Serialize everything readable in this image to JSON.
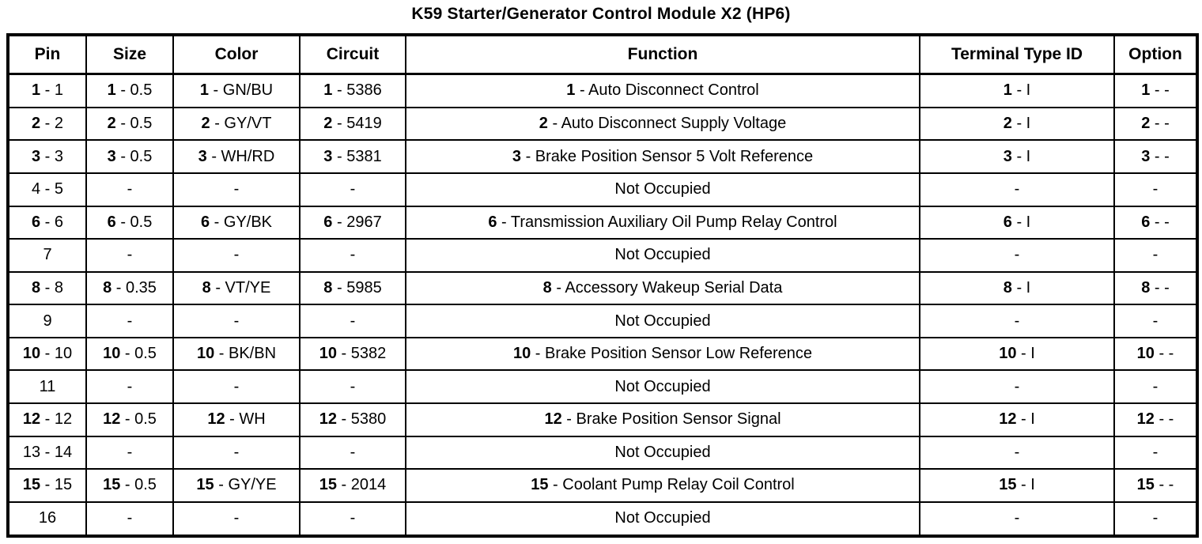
{
  "title": "K59 Starter/Generator Control Module X2 (HP6)",
  "table": {
    "headers": [
      "Pin",
      "Size",
      "Color",
      "Circuit",
      "Function",
      "Terminal Type ID",
      "Option"
    ],
    "rows": [
      {
        "pin": {
          "b": "1",
          "r": " - 1"
        },
        "size": {
          "b": "1",
          "r": " - 0.5"
        },
        "color": {
          "b": "1",
          "r": " - GN/BU"
        },
        "circuit": {
          "b": "1",
          "r": " - 5386"
        },
        "function": {
          "b": "1",
          "r": " - Auto Disconnect Control"
        },
        "terminal": {
          "b": "1",
          "r": " - I"
        },
        "option": {
          "b": "1",
          "r": " - -"
        }
      },
      {
        "pin": {
          "b": "2",
          "r": " - 2"
        },
        "size": {
          "b": "2",
          "r": " - 0.5"
        },
        "color": {
          "b": "2",
          "r": " - GY/VT"
        },
        "circuit": {
          "b": "2",
          "r": " - 5419"
        },
        "function": {
          "b": "2",
          "r": " - Auto Disconnect Supply Voltage"
        },
        "terminal": {
          "b": "2",
          "r": " - I"
        },
        "option": {
          "b": "2",
          "r": " - -"
        }
      },
      {
        "pin": {
          "b": "3",
          "r": " - 3"
        },
        "size": {
          "b": "3",
          "r": " - 0.5"
        },
        "color": {
          "b": "3",
          "r": " - WH/RD"
        },
        "circuit": {
          "b": "3",
          "r": " - 5381"
        },
        "function": {
          "b": "3",
          "r": " - Brake Position Sensor 5 Volt Reference"
        },
        "terminal": {
          "b": "3",
          "r": " - I"
        },
        "option": {
          "b": "3",
          "r": " - -"
        }
      },
      {
        "pin": {
          "b": "",
          "r": "4 - 5"
        },
        "size": {
          "b": "",
          "r": "-"
        },
        "color": {
          "b": "",
          "r": "-"
        },
        "circuit": {
          "b": "",
          "r": "-"
        },
        "function": {
          "b": "",
          "r": "Not Occupied"
        },
        "terminal": {
          "b": "",
          "r": "-"
        },
        "option": {
          "b": "",
          "r": "-"
        }
      },
      {
        "pin": {
          "b": "6",
          "r": " - 6"
        },
        "size": {
          "b": "6",
          "r": " - 0.5"
        },
        "color": {
          "b": "6",
          "r": " - GY/BK"
        },
        "circuit": {
          "b": "6",
          "r": " - 2967"
        },
        "function": {
          "b": "6",
          "r": " - Transmission Auxiliary Oil Pump Relay Control"
        },
        "terminal": {
          "b": "6",
          "r": " - I"
        },
        "option": {
          "b": "6",
          "r": " - -"
        }
      },
      {
        "pin": {
          "b": "",
          "r": "7"
        },
        "size": {
          "b": "",
          "r": "-"
        },
        "color": {
          "b": "",
          "r": "-"
        },
        "circuit": {
          "b": "",
          "r": "-"
        },
        "function": {
          "b": "",
          "r": "Not Occupied"
        },
        "terminal": {
          "b": "",
          "r": "-"
        },
        "option": {
          "b": "",
          "r": "-"
        }
      },
      {
        "pin": {
          "b": "8",
          "r": " - 8"
        },
        "size": {
          "b": "8",
          "r": " - 0.35"
        },
        "color": {
          "b": "8",
          "r": " - VT/YE"
        },
        "circuit": {
          "b": "8",
          "r": " - 5985"
        },
        "function": {
          "b": "8",
          "r": " - Accessory Wakeup Serial Data"
        },
        "terminal": {
          "b": "8",
          "r": " - I"
        },
        "option": {
          "b": "8",
          "r": " - -"
        }
      },
      {
        "pin": {
          "b": "",
          "r": "9"
        },
        "size": {
          "b": "",
          "r": "-"
        },
        "color": {
          "b": "",
          "r": "-"
        },
        "circuit": {
          "b": "",
          "r": "-"
        },
        "function": {
          "b": "",
          "r": "Not Occupied"
        },
        "terminal": {
          "b": "",
          "r": "-"
        },
        "option": {
          "b": "",
          "r": "-"
        }
      },
      {
        "pin": {
          "b": "10",
          "r": " - 10"
        },
        "size": {
          "b": "10",
          "r": " - 0.5"
        },
        "color": {
          "b": "10",
          "r": " - BK/BN"
        },
        "circuit": {
          "b": "10",
          "r": " - 5382"
        },
        "function": {
          "b": "10",
          "r": " - Brake Position Sensor Low Reference"
        },
        "terminal": {
          "b": "10",
          "r": " - I"
        },
        "option": {
          "b": "10",
          "r": " - -"
        }
      },
      {
        "pin": {
          "b": "",
          "r": "11"
        },
        "size": {
          "b": "",
          "r": "-"
        },
        "color": {
          "b": "",
          "r": "-"
        },
        "circuit": {
          "b": "",
          "r": "-"
        },
        "function": {
          "b": "",
          "r": "Not Occupied"
        },
        "terminal": {
          "b": "",
          "r": "-"
        },
        "option": {
          "b": "",
          "r": "-"
        }
      },
      {
        "pin": {
          "b": "12",
          "r": " - 12"
        },
        "size": {
          "b": "12",
          "r": " - 0.5"
        },
        "color": {
          "b": "12",
          "r": " - WH"
        },
        "circuit": {
          "b": "12",
          "r": " - 5380"
        },
        "function": {
          "b": "12",
          "r": " - Brake Position Sensor Signal"
        },
        "terminal": {
          "b": "12",
          "r": " - I"
        },
        "option": {
          "b": "12",
          "r": " - -"
        }
      },
      {
        "pin": {
          "b": "",
          "r": "13 - 14"
        },
        "size": {
          "b": "",
          "r": "-"
        },
        "color": {
          "b": "",
          "r": "-"
        },
        "circuit": {
          "b": "",
          "r": "-"
        },
        "function": {
          "b": "",
          "r": "Not Occupied"
        },
        "terminal": {
          "b": "",
          "r": "-"
        },
        "option": {
          "b": "",
          "r": "-"
        }
      },
      {
        "pin": {
          "b": "15",
          "r": " - 15"
        },
        "size": {
          "b": "15",
          "r": " - 0.5"
        },
        "color": {
          "b": "15",
          "r": " - GY/YE"
        },
        "circuit": {
          "b": "15",
          "r": " - 2014"
        },
        "function": {
          "b": "15",
          "r": " - Coolant Pump Relay Coil Control"
        },
        "terminal": {
          "b": "15",
          "r": " - I"
        },
        "option": {
          "b": "15",
          "r": " - -"
        }
      },
      {
        "pin": {
          "b": "",
          "r": "16"
        },
        "size": {
          "b": "",
          "r": "-"
        },
        "color": {
          "b": "",
          "r": "-"
        },
        "circuit": {
          "b": "",
          "r": "-"
        },
        "function": {
          "b": "",
          "r": "Not Occupied"
        },
        "terminal": {
          "b": "",
          "r": "-"
        },
        "option": {
          "b": "",
          "r": "-"
        }
      }
    ]
  }
}
